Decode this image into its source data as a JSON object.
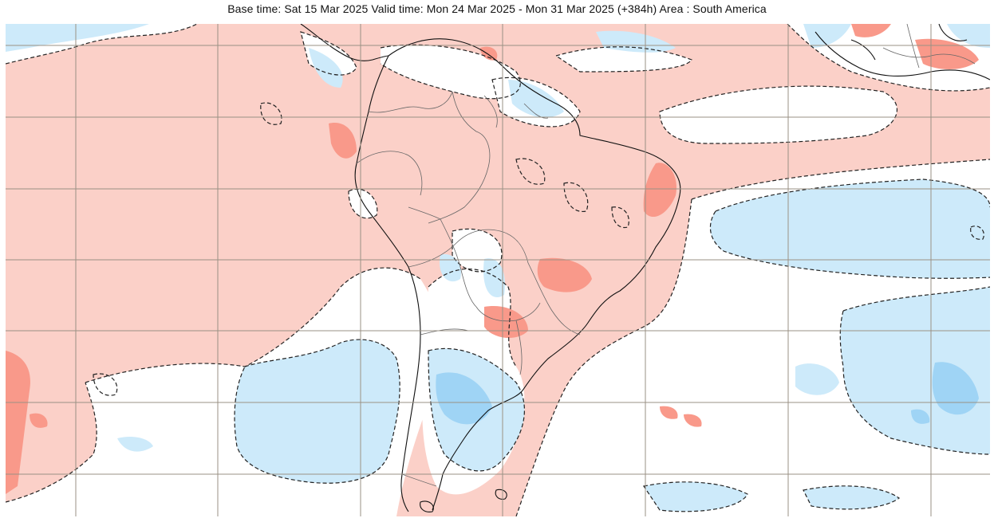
{
  "header": {
    "title": "Base time: Sat 15 Mar 2025 Valid time: Mon 24 Mar 2025 - Mon 31 Mar 2025 (+384h) Area : South America"
  },
  "map": {
    "area": "South America",
    "base_time": "Sat 15 Mar 2025",
    "valid_time": "Mon 24 Mar 2025 - Mon 31 Mar 2025",
    "lead_time": "+384h",
    "colors": {
      "background_warm": "#fbd0c8",
      "warm_strong": "#f9998a",
      "neutral": "#ffffff",
      "cool": "#cdeafa",
      "cool_strong": "#9fd4f5",
      "coastline": "#111111",
      "borders": "#666666",
      "gridlines": "#9a9184",
      "contour": "#222222"
    }
  }
}
